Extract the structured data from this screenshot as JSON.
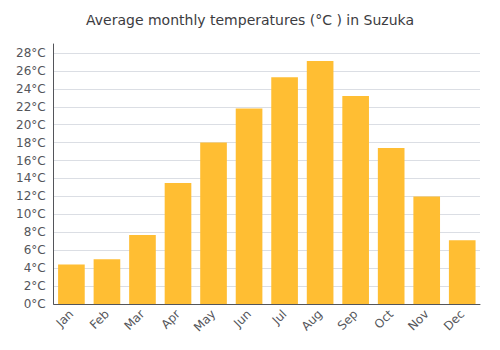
{
  "chart_data": {
    "type": "bar",
    "title": "Average monthly temperatures (°C ) in Suzuka",
    "categories": [
      "Jan",
      "Feb",
      "Mar",
      "Apr",
      "May",
      "Jun",
      "Jul",
      "Aug",
      "Sep",
      "Oct",
      "Nov",
      "Dec"
    ],
    "values": [
      4.4,
      5.0,
      7.7,
      13.5,
      18.0,
      21.8,
      25.3,
      27.1,
      23.2,
      17.4,
      12.0,
      7.1
    ],
    "color": "#FFBE33",
    "ylim": [
      0,
      29
    ],
    "yticks": [
      {
        "value": 0,
        "label": "0°C"
      },
      {
        "value": 2,
        "label": "2°C"
      },
      {
        "value": 4,
        "label": "4°C"
      },
      {
        "value": 6,
        "label": "6°C"
      },
      {
        "value": 8,
        "label": "8°C"
      },
      {
        "value": 10,
        "label": "10°C"
      },
      {
        "value": 12,
        "label": "12°C"
      },
      {
        "value": 14,
        "label": "14°C"
      },
      {
        "value": 16,
        "label": "16°C"
      },
      {
        "value": 18,
        "label": "18°C"
      },
      {
        "value": 20,
        "label": "20°C"
      },
      {
        "value": 22,
        "label": "22°C"
      },
      {
        "value": 24,
        "label": "24°C"
      },
      {
        "value": 26,
        "label": "26°C"
      },
      {
        "value": 28,
        "label": "28°C"
      }
    ],
    "grid": true
  }
}
